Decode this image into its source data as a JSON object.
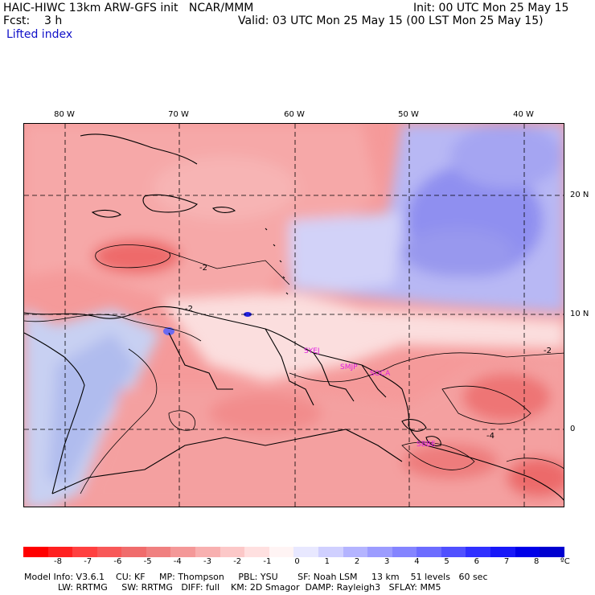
{
  "header": {
    "model_line": "HAIC-HIWC 13km ARW-GFS init   NCAR/MMM",
    "init": "Init: 00 UTC Mon 25 May 15",
    "fcst": "Fcst:    3 h",
    "valid": "Valid: 03 UTC Mon 25 May 15 (00 LST Mon 25 May 15)",
    "field": "Lifted index"
  },
  "map": {
    "lon_labels": [
      "80 W",
      "70 W",
      "60 W",
      "50 W",
      "40 W"
    ],
    "lat_labels": [
      "20 N",
      "10 N",
      "0"
    ],
    "contour_labels": [
      "-2",
      "-2",
      "-4",
      "-2"
    ],
    "stations": [
      "SYEJ",
      "SMJP",
      "SOCA",
      "SBBE"
    ],
    "colors": {
      "station": "#e020e0",
      "coast": "#000000",
      "grid": "#000000"
    }
  },
  "colorbar": {
    "ticks": [
      "-8",
      "-7",
      "-6",
      "-5",
      "-4",
      "-3",
      "-2",
      "-1",
      "0",
      "1",
      "2",
      "3",
      "4",
      "5",
      "6",
      "7",
      "8"
    ],
    "unit": "ºC",
    "colors": [
      "#ff0000",
      "#ff2020",
      "#ff4040",
      "#f85858",
      "#f06c6c",
      "#f08080",
      "#f49898",
      "#f8b0b0",
      "#fcc8c8",
      "#ffe0e0",
      "#fff4f4",
      "#e8e8ff",
      "#d0d0ff",
      "#b4b4ff",
      "#9c9cff",
      "#8484ff",
      "#6c6cff",
      "#5050ff",
      "#3030ff",
      "#1818f8",
      "#0000e8",
      "#0000d0"
    ]
  },
  "footer": {
    "line1": "Model Info: V3.6.1    CU: KF     MP: Thompson     PBL: YSU       SF: Noah LSM     13 km    51 levels   60 sec",
    "line2": "            LW: RRTMG     SW: RRTMG   DIFF: full    KM: 2D Smagor  DAMP: Rayleigh3   SFLAY: MM5"
  }
}
